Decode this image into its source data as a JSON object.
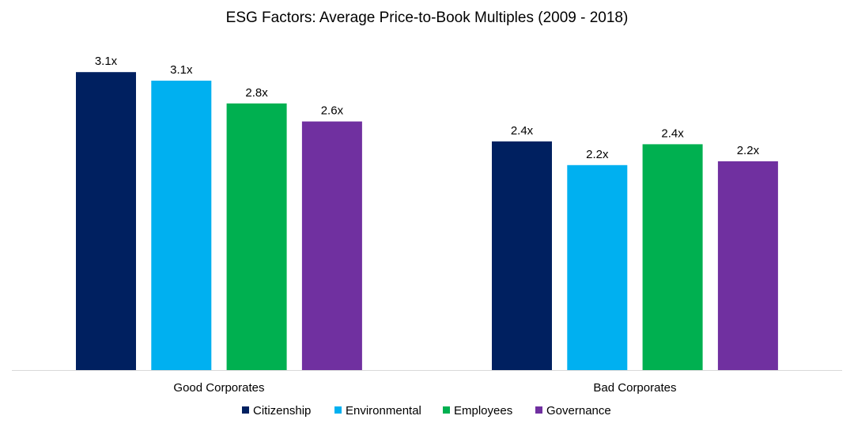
{
  "chart_data": {
    "type": "bar",
    "title": "ESG Factors: Average Price-to-Book Multiples (2009 - 2018)",
    "xlabel": "",
    "ylabel": "",
    "categories": [
      "Good Corporates",
      "Bad Corporates"
    ],
    "series": [
      {
        "name": "Citizenship",
        "color": "#002060",
        "values": [
          3.14,
          2.41
        ],
        "labels": [
          "3.1x",
          "2.4x"
        ]
      },
      {
        "name": "Environmental",
        "color": "#00B0F0",
        "values": [
          3.05,
          2.16
        ],
        "labels": [
          "3.1x",
          "2.2x"
        ]
      },
      {
        "name": "Employees",
        "color": "#00B050",
        "values": [
          2.81,
          2.38
        ],
        "labels": [
          "2.8x",
          "2.4x"
        ]
      },
      {
        "name": "Governance",
        "color": "#7030A0",
        "values": [
          2.62,
          2.2
        ],
        "labels": [
          "2.6x",
          "2.2x"
        ]
      }
    ],
    "ylim": [
      0,
      3.9
    ],
    "grid": false,
    "y_axis_shown": false,
    "legend_position": "bottom"
  }
}
